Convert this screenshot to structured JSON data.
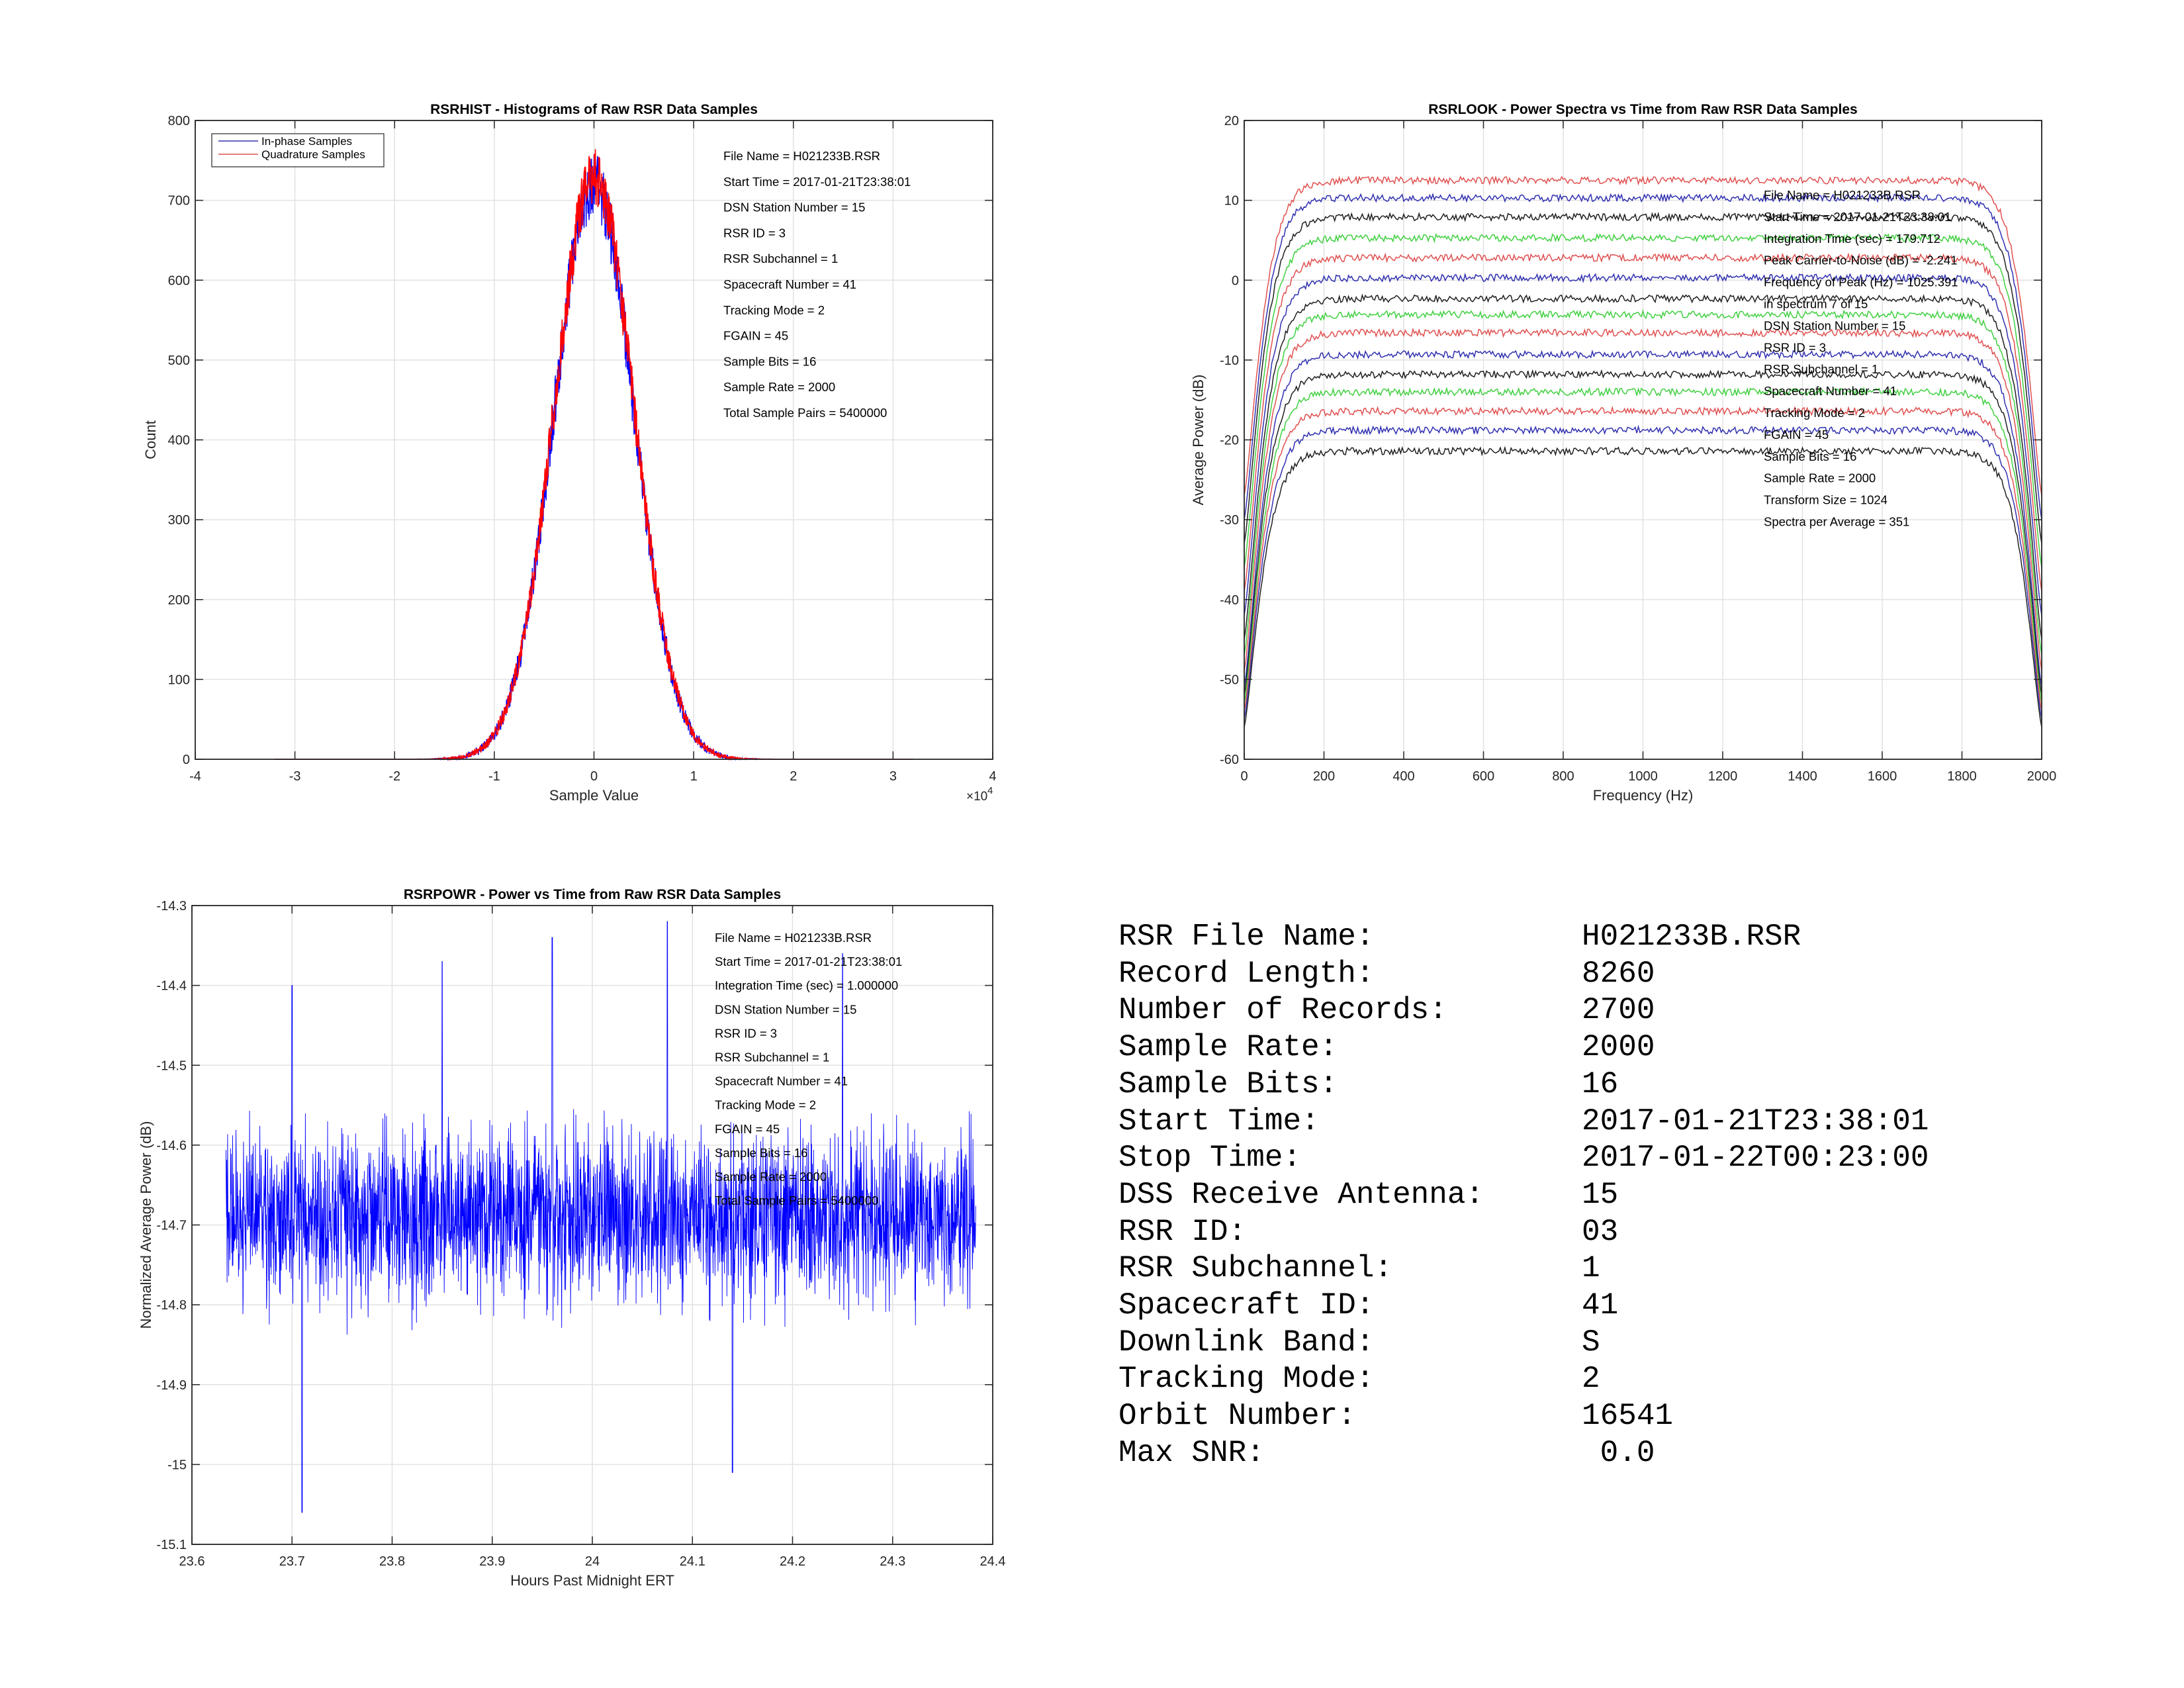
{
  "chart_data": [
    {
      "type": "line",
      "id": "hist",
      "title": "RSRHIST - Histograms of Raw RSR Data Samples",
      "xlabel": "Sample Value",
      "ylabel": "Count",
      "xlim": [
        -4,
        4
      ],
      "ylim": [
        0,
        800
      ],
      "xticks": [
        -4,
        -3,
        -2,
        -1,
        0,
        1,
        2,
        3,
        4
      ],
      "yticks": [
        0,
        100,
        200,
        300,
        400,
        500,
        600,
        700,
        800
      ],
      "xtick_labels": [
        "-4",
        "-3",
        "-2",
        "-1",
        "0",
        "1",
        "2",
        "3",
        "4"
      ],
      "ytick_labels": [
        "0",
        "100",
        "200",
        "300",
        "400",
        "500",
        "600",
        "700",
        "800"
      ],
      "x_multiplier": "×10",
      "x_multiplier_exp": "4",
      "grid": true,
      "legend_placement": "top-left",
      "series": [
        {
          "name": "In-phase Samples",
          "color": "#0000ff",
          "peak": 720,
          "sigma": 0.4,
          "noise": 40
        },
        {
          "name": "Quadrature Samples",
          "color": "#ff0000",
          "peak": 730,
          "sigma": 0.4,
          "noise": 30
        }
      ],
      "annotations": [
        "File Name = H021233B.RSR",
        "Start Time = 2017-01-21T23:38:01",
        "DSN Station Number = 15",
        "RSR ID = 3",
        "RSR Subchannel = 1",
        "Spacecraft Number = 41",
        "Tracking Mode = 2",
        "FGAIN = 45",
        "Sample Bits = 16",
        "Sample Rate = 2000",
        "Total Sample Pairs = 5400000"
      ]
    },
    {
      "type": "line",
      "id": "look",
      "title": "RSRLOOK - Power Spectra vs Time from Raw RSR Data Samples",
      "xlabel": "Frequency (Hz)",
      "ylabel": "Average Power (dB)",
      "xlim": [
        0,
        2000
      ],
      "ylim": [
        -60,
        20
      ],
      "xticks": [
        0,
        200,
        400,
        600,
        800,
        1000,
        1200,
        1400,
        1600,
        1800,
        2000
      ],
      "yticks": [
        -60,
        -50,
        -40,
        -30,
        -20,
        -10,
        0,
        10,
        20
      ],
      "xtick_labels": [
        "0",
        "200",
        "400",
        "600",
        "800",
        "1000",
        "1200",
        "1400",
        "1600",
        "1800",
        "2000"
      ],
      "ytick_labels": [
        "-60",
        "-50",
        "-40",
        "-30",
        "-20",
        "-10",
        "0",
        "10",
        "20"
      ],
      "grid": true,
      "spectrum_count": 15,
      "plateau_levels": [
        12.5,
        10.3,
        7.9,
        5.3,
        2.8,
        0.3,
        -2.3,
        -4.3,
        -6.6,
        -9.3,
        -11.8,
        -14.0,
        -16.4,
        -18.8,
        -21.4
      ],
      "edge_levels": [
        -27,
        -30,
        -33,
        -36,
        -39,
        -42,
        -45,
        -47,
        -49,
        -51,
        -52,
        -53,
        -54,
        -55,
        -56
      ],
      "series_colors": [
        "#e05050",
        "#3030b0",
        "#202020",
        "#40d040",
        "#e05050",
        "#3030b0",
        "#202020",
        "#40d040",
        "#e05050",
        "#3030b0",
        "#202020",
        "#40d040",
        "#e05050",
        "#3030b0",
        "#202020"
      ],
      "annotations": [
        "File Name = H021233B.RSR",
        "Start Time = 2017-01-21T23:38:01",
        "Integration Time (sec) =   179.712",
        "Peak Carrier-to-Noise (dB) = -2.241",
        "Frequency of Peak (Hz) =   1025.391",
        "  in spectrum  7  of  15",
        "DSN Station Number = 15",
        "RSR ID = 3",
        "RSR Subchannel = 1",
        "Spacecraft Number = 41",
        "Tracking Mode = 2",
        "FGAIN = 45",
        "Sample Bits = 16",
        "Sample Rate = 2000",
        "Transform Size = 1024",
        "Spectra per Average = 351"
      ]
    },
    {
      "type": "line",
      "id": "powr",
      "title": "RSRPOWR - Power vs Time from Raw RSR Data Samples",
      "xlabel": "Hours Past Midnight ERT",
      "ylabel": "Normalized Average Power (dB)",
      "xlim": [
        23.6,
        24.4
      ],
      "ylim": [
        -15.1,
        -14.3
      ],
      "xticks": [
        23.6,
        23.7,
        23.8,
        23.9,
        24.0,
        24.1,
        24.2,
        24.3,
        24.4
      ],
      "yticks": [
        -15.1,
        -15.0,
        -14.9,
        -14.8,
        -14.7,
        -14.6,
        -14.5,
        -14.4,
        -14.3
      ],
      "xtick_labels": [
        "23.6",
        "23.7",
        "23.8",
        "23.9",
        "24",
        "24.1",
        "24.2",
        "24.3",
        "24.4"
      ],
      "ytick_labels": [
        "-15.1",
        "-15",
        "-14.9",
        "-14.8",
        "-14.7",
        "-14.6",
        "-14.5",
        "-14.4",
        "-14.3"
      ],
      "grid": true,
      "series": [
        {
          "name": "",
          "color": "#0000ff",
          "x_start": 23.634,
          "x_end": 24.383,
          "mean": -14.69,
          "sd": 0.065
        }
      ],
      "spikes": [
        {
          "x": 23.7,
          "y": -14.4
        },
        {
          "x": 23.71,
          "y": -15.06
        },
        {
          "x": 23.85,
          "y": -14.37
        },
        {
          "x": 23.96,
          "y": -14.34
        },
        {
          "x": 24.075,
          "y": -14.31
        },
        {
          "x": 24.14,
          "y": -15.01
        },
        {
          "x": 24.25,
          "y": -14.36
        }
      ],
      "annotations": [
        "File Name = H021233B.RSR",
        "Start Time = 2017-01-21T23:38:01",
        "Integration Time (sec) = 1.000000",
        "DSN Station Number = 15",
        "RSR ID = 3",
        "RSR Subchannel = 1",
        "Spacecraft Number = 41",
        "Tracking Mode = 2",
        "FGAIN = 45",
        "Sample Bits = 16",
        "Sample Rate = 2000",
        "Total Sample Pairs = 5400000"
      ]
    }
  ],
  "summary": [
    {
      "key": "RSR File Name:",
      "value": "H021233B.RSR"
    },
    {
      "key": "Record Length:",
      "value": "8260"
    },
    {
      "key": "Number of Records:",
      "value": "2700"
    },
    {
      "key": "Sample Rate:",
      "value": "2000"
    },
    {
      "key": "Sample Bits:",
      "value": "16"
    },
    {
      "key": "Start Time:",
      "value": "2017-01-21T23:38:01"
    },
    {
      "key": "Stop Time:",
      "value": "2017-01-22T00:23:00"
    },
    {
      "key": "DSS Receive Antenna:",
      "value": "15"
    },
    {
      "key": "RSR ID:",
      "value": "03"
    },
    {
      "key": "RSR Subchannel:",
      "value": "1"
    },
    {
      "key": "Spacecraft ID:",
      "value": "41"
    },
    {
      "key": "Downlink Band:",
      "value": "S"
    },
    {
      "key": "Tracking Mode:",
      "value": "2"
    },
    {
      "key": "Orbit Number:",
      "value": "16541"
    },
    {
      "key": "Max SNR:",
      "value": " 0.0"
    }
  ]
}
